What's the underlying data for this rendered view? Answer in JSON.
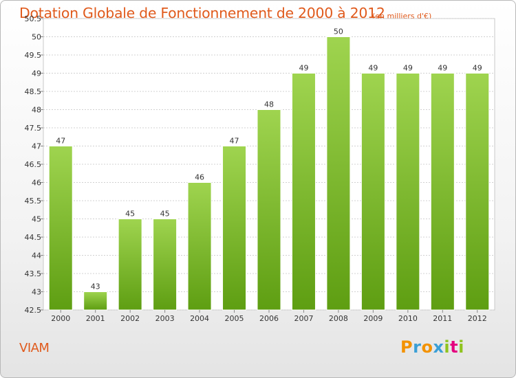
{
  "title": "Dotation Globale de Fonctionnement de 2000 à 2012",
  "subtitle": "(en milliers d'€)",
  "commune": "VIAM",
  "logo": {
    "letters": [
      "P",
      "r",
      "o",
      "x",
      "i",
      "t",
      "i"
    ],
    "colors": [
      "#f39200",
      "#3b9fd6",
      "#f39200",
      "#3b9fd6",
      "#8fc31f",
      "#e4007f",
      "#8fc31f"
    ]
  },
  "colors": {
    "accent": "#e05a1c",
    "bar_top": "#9fd44f",
    "bar_bottom": "#5e9e12",
    "grid": "#d0d0d0"
  },
  "chart_data": {
    "type": "bar",
    "title": "Dotation Globale de Fonctionnement de 2000 à 2012",
    "subtitle": "(en milliers d'€)",
    "categories": [
      "2000",
      "2001",
      "2002",
      "2003",
      "2004",
      "2005",
      "2006",
      "2007",
      "2008",
      "2009",
      "2010",
      "2011",
      "2012"
    ],
    "values": [
      47,
      43,
      45,
      45,
      46,
      47,
      48,
      49,
      50,
      49,
      49,
      49,
      49
    ],
    "labels": [
      "47",
      "43",
      "45",
      "45",
      "46",
      "47",
      "48",
      "49",
      "50",
      "49",
      "49",
      "49",
      "49"
    ],
    "ylim": [
      42.5,
      50.5
    ],
    "yticks": [
      42.5,
      43,
      43.5,
      44,
      44.5,
      45,
      45.5,
      46,
      46.5,
      47,
      47.5,
      48,
      48.5,
      49,
      49.5,
      50,
      50.5
    ],
    "ytick_labels": [
      "42.5",
      "43",
      "43.5",
      "44",
      "44.5",
      "45",
      "45.5",
      "46",
      "46.5",
      "47",
      "47.5",
      "48",
      "48.5",
      "49",
      "49.5",
      "50",
      "50.5"
    ],
    "xlabel": "",
    "ylabel": "",
    "grid": true,
    "legend": "none"
  }
}
